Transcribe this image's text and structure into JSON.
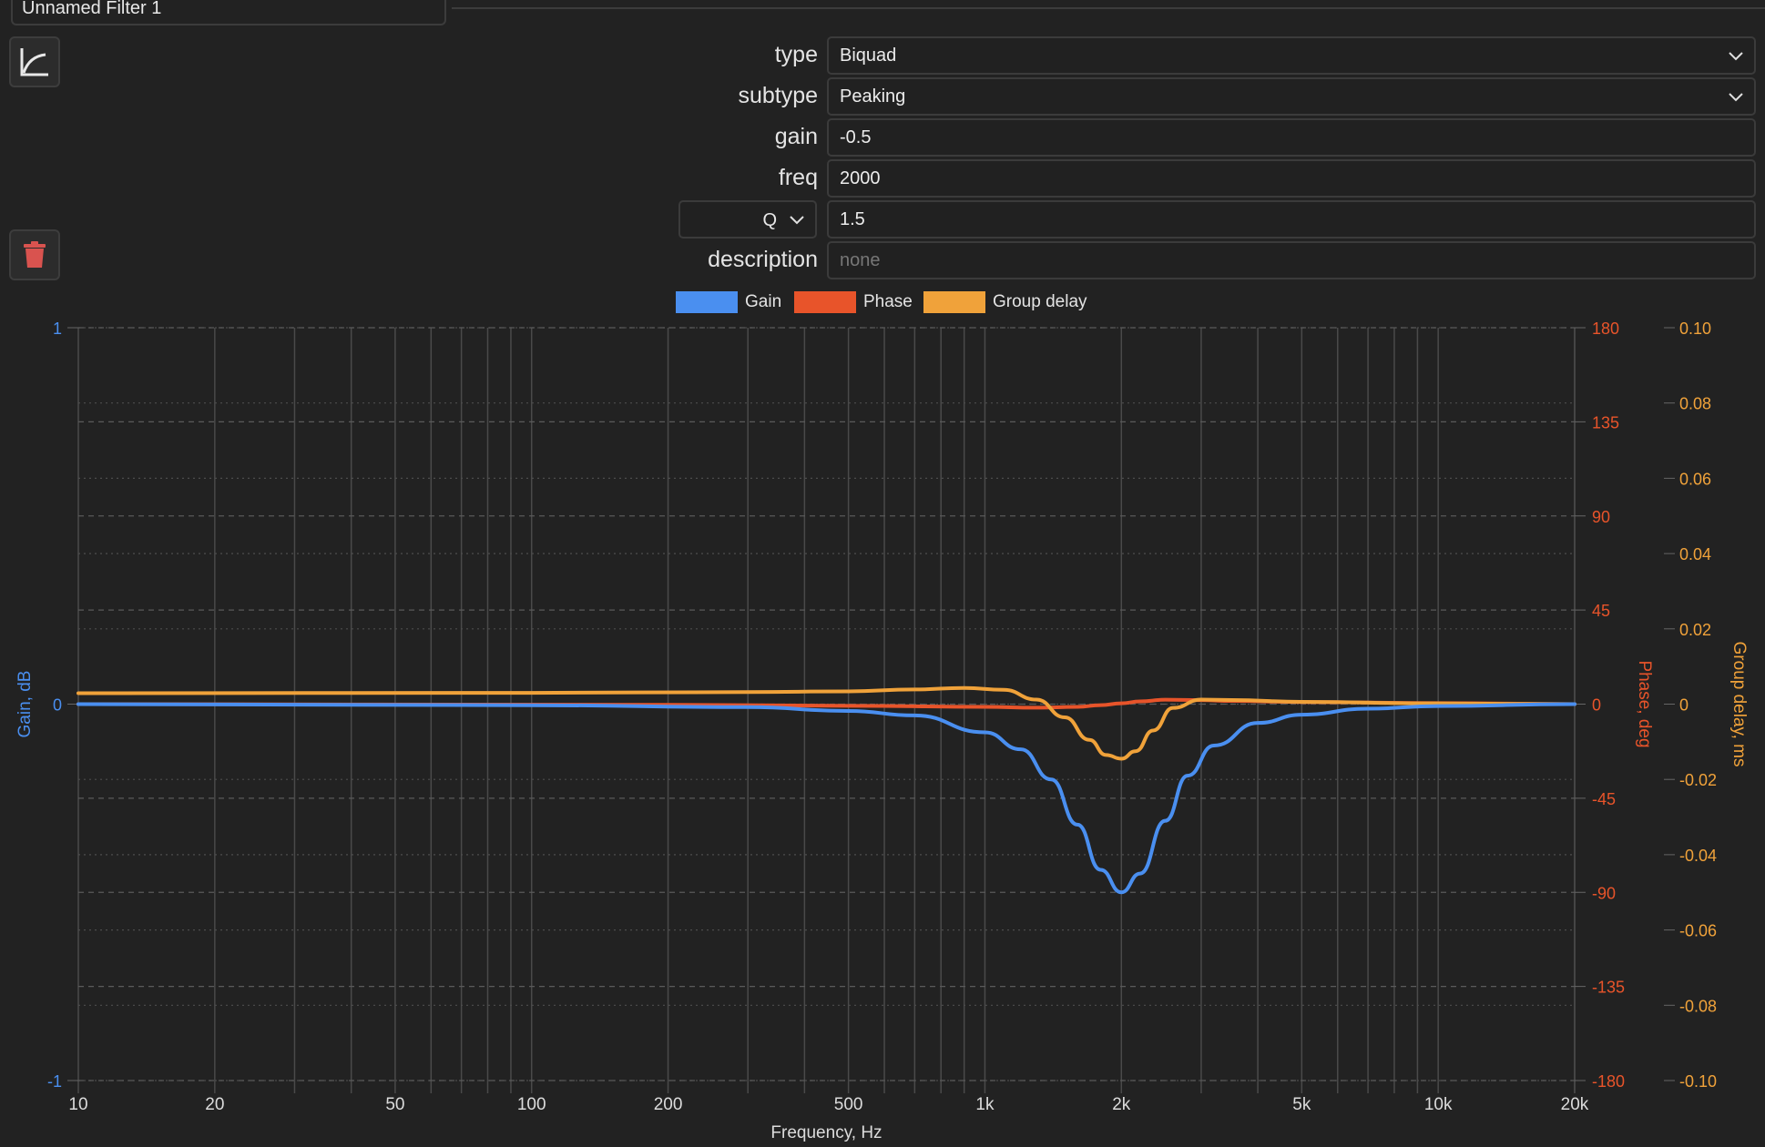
{
  "window": {
    "filter_name": "Unnamed Filter 1"
  },
  "sidebar": {
    "plot_icon": "chart-line-icon",
    "delete_icon": "trash-icon"
  },
  "form": {
    "type_label": "type",
    "type_value": "Biquad",
    "subtype_label": "subtype",
    "subtype_value": "Peaking",
    "gain_label": "gain",
    "gain_value": "-0.5",
    "freq_label": "freq",
    "freq_value": "2000",
    "q_mode": "Q",
    "q_value": "1.5",
    "description_label": "description",
    "description_placeholder": "none"
  },
  "colors": {
    "gain": "#4a8ff0",
    "phase": "#e8542a",
    "group_delay": "#f0a23a",
    "background": "#222222"
  },
  "chart_data": {
    "type": "line",
    "xlabel": "Frequency, Hz",
    "x_scale": "log",
    "xlim": [
      10,
      20000
    ],
    "x_ticks": [
      {
        "v": 10,
        "label": "10"
      },
      {
        "v": 20,
        "label": "20"
      },
      {
        "v": 50,
        "label": "50"
      },
      {
        "v": 100,
        "label": "100"
      },
      {
        "v": 200,
        "label": "200"
      },
      {
        "v": 500,
        "label": "500"
      },
      {
        "v": 1000,
        "label": "1k"
      },
      {
        "v": 2000,
        "label": "2k"
      },
      {
        "v": 5000,
        "label": "5k"
      },
      {
        "v": 10000,
        "label": "10k"
      },
      {
        "v": 20000,
        "label": "20k"
      }
    ],
    "grid": true,
    "legend": {
      "placement": "top-center",
      "entries": [
        "Gain",
        "Phase",
        "Group delay"
      ]
    },
    "axes": {
      "gain": {
        "label": "Gain, dB",
        "ylim": [
          -1,
          1
        ],
        "ticks": [
          "1",
          "0",
          "-1"
        ],
        "side": "left"
      },
      "phase": {
        "label": "Phase, deg",
        "ylim": [
          -180,
          180
        ],
        "ticks": [
          "180",
          "135",
          "90",
          "45",
          "0",
          "-45",
          "-90",
          "-135",
          "-180"
        ],
        "side": "right"
      },
      "group_delay": {
        "label": "Group delay, ms",
        "ylim": [
          -0.1,
          0.1
        ],
        "ticks": [
          "0.10",
          "0.08",
          "0.06",
          "0.04",
          "0.02",
          "0",
          "-0.02",
          "-0.04",
          "-0.06",
          "-0.08",
          "-0.10"
        ],
        "side": "right"
      }
    },
    "series": [
      {
        "name": "Gain",
        "axis": "gain",
        "x": [
          10,
          100,
          300,
          500,
          700,
          1000,
          1200,
          1400,
          1600,
          1800,
          2000,
          2200,
          2500,
          2800,
          3200,
          4000,
          5000,
          7000,
          10000,
          20000
        ],
        "y": [
          0,
          -0.003,
          -0.008,
          -0.018,
          -0.03,
          -0.075,
          -0.12,
          -0.2,
          -0.32,
          -0.44,
          -0.5,
          -0.45,
          -0.31,
          -0.19,
          -0.11,
          -0.05,
          -0.028,
          -0.012,
          -0.005,
          0
        ]
      },
      {
        "name": "Phase",
        "axis": "phase",
        "x": [
          10,
          200,
          500,
          1000,
          1300,
          1600,
          1800,
          2000,
          2200,
          2500,
          3000,
          3500,
          5000,
          10000,
          20000
        ],
        "y": [
          0,
          -0.3,
          -0.8,
          -1.3,
          -1.7,
          -1.3,
          -0.5,
          0.4,
          1.3,
          2.1,
          1.9,
          1.5,
          1.0,
          0.5,
          0
        ]
      },
      {
        "name": "Group delay",
        "axis": "group_delay",
        "x": [
          10,
          100,
          300,
          500,
          700,
          900,
          1100,
          1300,
          1500,
          1700,
          1850,
          2000,
          2150,
          2350,
          2600,
          3000,
          3500,
          5000,
          10000,
          20000
        ],
        "y": [
          0.0029,
          0.003,
          0.0032,
          0.0034,
          0.0039,
          0.0043,
          0.0038,
          0.0012,
          -0.0035,
          -0.0095,
          -0.0135,
          -0.0145,
          -0.0125,
          -0.007,
          -0.001,
          0.0012,
          0.0011,
          0.0006,
          0.0002,
          0
        ]
      }
    ]
  }
}
